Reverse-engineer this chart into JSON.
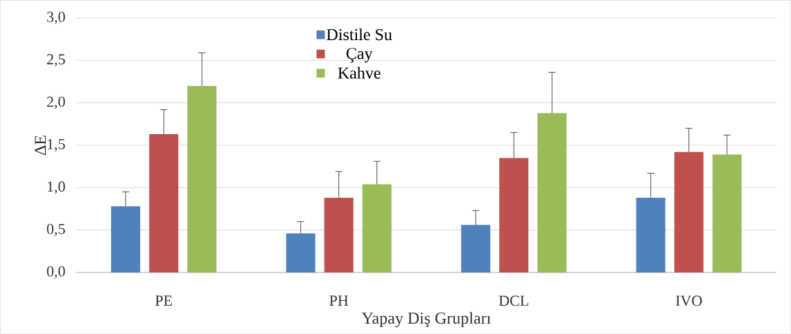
{
  "chart_data": {
    "type": "bar",
    "xlabel": "Yapay Diş Grupları",
    "ylabel": "ΔE",
    "categories": [
      "PE",
      "PH",
      "DCL",
      "IVO"
    ],
    "series": [
      {
        "name": "Distile Su",
        "color": "#4f81bd",
        "values": [
          0.78,
          0.46,
          0.56,
          0.88
        ],
        "errors": [
          [
            0.78,
            0.95
          ],
          [
            0.46,
            0.6
          ],
          [
            0.56,
            0.73
          ],
          [
            0.88,
            1.17
          ]
        ]
      },
      {
        "name": "Çay",
        "color": "#c0504d",
        "values": [
          1.63,
          0.88,
          1.35,
          1.42
        ],
        "errors": [
          [
            1.63,
            1.92
          ],
          [
            0.88,
            1.19
          ],
          [
            1.35,
            1.65
          ],
          [
            1.42,
            1.7
          ]
        ]
      },
      {
        "name": "Kahve",
        "color": "#9bbb59",
        "values": [
          2.2,
          1.04,
          1.88,
          1.39
        ],
        "errors": [
          [
            2.2,
            2.59
          ],
          [
            1.04,
            1.31
          ],
          [
            1.88,
            2.36
          ],
          [
            1.39,
            1.62
          ]
        ]
      }
    ],
    "ylim": [
      0,
      3
    ],
    "yticks": [
      {
        "value": 0,
        "label": "0,0"
      },
      {
        "value": 0.5,
        "label": "0,5"
      },
      {
        "value": 1,
        "label": "1,0"
      },
      {
        "value": 1.5,
        "label": "1,5"
      },
      {
        "value": 2,
        "label": "2,0"
      },
      {
        "value": 2.5,
        "label": "2,5"
      },
      {
        "value": 3,
        "label": "3,0"
      }
    ],
    "grid": "y",
    "legend": "top"
  }
}
